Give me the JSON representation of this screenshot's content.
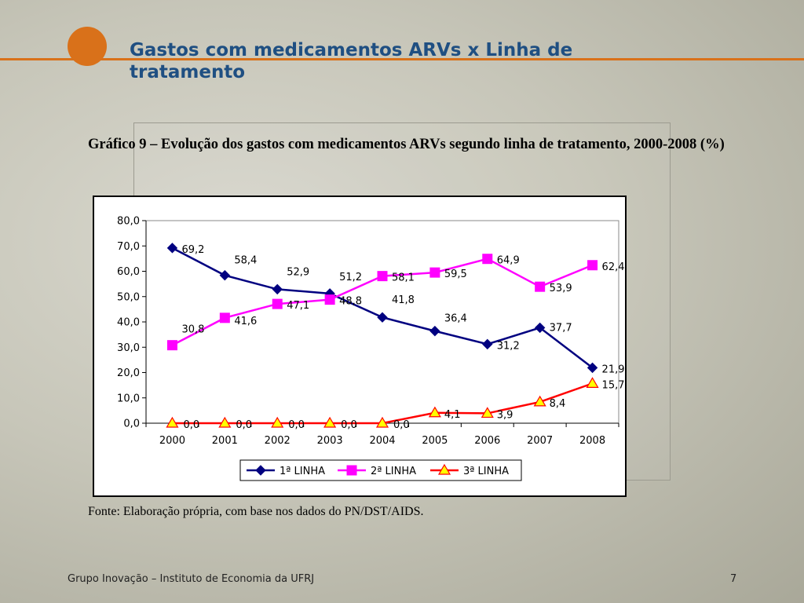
{
  "slide": {
    "title": "Gastos com medicamentos ARVs x Linha de tratamento",
    "footer": "Grupo Inovação – Instituto de Economia da UFRJ",
    "page_number": "7"
  },
  "figure": {
    "caption": "Gráfico 9 – Evolução dos gastos com medicamentos ARVs segundo linha de tratamento, 2000-2008 (%)",
    "source": "Fonte: Elaboração própria, com base nos dados do PN/DST/AIDS."
  },
  "chart_data": {
    "type": "line",
    "title": "",
    "xlabel": "",
    "ylabel": "",
    "categories": [
      "2000",
      "2001",
      "2002",
      "2003",
      "2004",
      "2005",
      "2006",
      "2007",
      "2008"
    ],
    "ylim": [
      0,
      80
    ],
    "yticks": [
      0,
      10,
      20,
      30,
      40,
      50,
      60,
      70,
      80
    ],
    "ytick_labels": [
      "0,0",
      "10,0",
      "20,0",
      "30,0",
      "40,0",
      "50,0",
      "60,0",
      "70,0",
      "80,0"
    ],
    "grid": false,
    "legend_position": "bottom",
    "series": [
      {
        "name": "1ª LINHA",
        "color": "#000080",
        "marker": "diamond",
        "values": [
          69.2,
          58.4,
          52.9,
          51.2,
          41.8,
          36.4,
          31.2,
          37.7,
          21.9
        ],
        "labels": [
          "69,2",
          "58,4",
          "52,9",
          "51,2",
          "41,8",
          "36,4",
          "31,2",
          "37,7",
          "21,9"
        ]
      },
      {
        "name": "2ª LINHA",
        "color": "#ff00ff",
        "marker": "square",
        "values": [
          30.8,
          41.6,
          47.1,
          48.8,
          58.1,
          59.5,
          64.9,
          53.9,
          62.4
        ],
        "labels": [
          "30,8",
          "41,6",
          "47,1",
          "48,8",
          "58,1",
          "59,5",
          "64,9",
          "53,9",
          "62,4"
        ]
      },
      {
        "name": "3ª LINHA",
        "color": "#ff0000",
        "marker": "triangle",
        "marker_fill": "#ffff00",
        "values": [
          0.0,
          0.0,
          0.0,
          0.0,
          0.0,
          4.1,
          3.9,
          8.4,
          15.7
        ],
        "labels": [
          "0,0",
          "0,0",
          "0,0",
          "0,0",
          "0,0",
          "4,1",
          "3,9",
          "8,4",
          "15,7"
        ]
      }
    ]
  }
}
